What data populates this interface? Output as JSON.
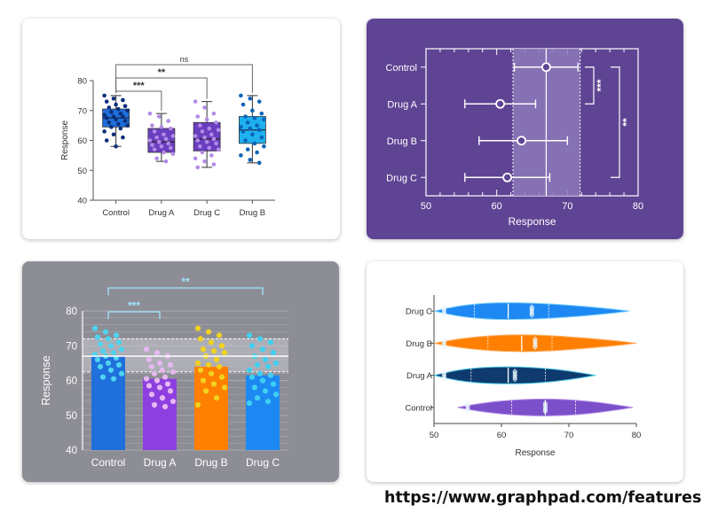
{
  "source_url": "https://www.graphpad.com/features",
  "colors": {
    "control": "#1f6fdc",
    "drug_a": "#8e3fe0",
    "drug_b": "#ff7f00",
    "drug_c": "#1e88f2",
    "box_purple": "#6a3fbf",
    "box_cyan": "#1fb0f0",
    "panel2_bg": "#5f4494",
    "panel3_bg": "#8d8d95",
    "violet_navy": "#0f3a6e"
  },
  "chart_data": [
    {
      "type": "box",
      "title": "",
      "xlabel": "",
      "ylabel": "Response",
      "ylim": [
        40,
        80
      ],
      "yticks": [
        40,
        50,
        60,
        70,
        80
      ],
      "categories": [
        "Control",
        "Drug A",
        "Drug C",
        "Drug B"
      ],
      "boxes": [
        {
          "name": "Control",
          "min": 58,
          "q1": 64.5,
          "median": 67.5,
          "q3": 70.5,
          "max": 75
        },
        {
          "name": "Drug A",
          "min": 53,
          "q1": 56,
          "median": 59.5,
          "q3": 64,
          "max": 69
        },
        {
          "name": "Drug C",
          "min": 51,
          "q1": 56.5,
          "median": 60.5,
          "q3": 66,
          "max": 73
        },
        {
          "name": "Drug B",
          "min": 52.5,
          "q1": 59,
          "median": 63.5,
          "q3": 68,
          "max": 75
        }
      ],
      "points": {
        "Control": [
          75,
          74,
          73.5,
          73,
          72,
          71.5,
          71,
          70.5,
          70,
          69.5,
          69,
          68.5,
          68,
          68,
          67.5,
          67,
          66.5,
          66,
          65.5,
          65,
          64.5,
          64,
          63,
          62,
          61,
          60,
          58
        ],
        "Drug A": [
          69,
          68,
          66.5,
          65,
          64.5,
          64,
          63,
          62,
          61.5,
          61,
          60.5,
          60,
          59.5,
          59,
          58.5,
          58,
          57.5,
          57,
          56,
          55.5,
          54,
          53
        ],
        "Drug C": [
          73,
          71,
          69,
          68,
          67,
          66,
          65,
          64,
          63.5,
          63,
          62,
          61.5,
          61,
          60.5,
          60,
          59.5,
          59,
          58,
          57.5,
          57,
          56,
          55,
          54,
          53,
          52,
          51
        ],
        "Drug B": [
          75,
          74,
          73,
          72,
          70,
          69,
          68,
          67.5,
          67,
          66,
          65,
          64.5,
          64,
          63.5,
          63,
          62,
          61,
          60,
          59,
          58,
          57,
          56,
          55,
          53.5,
          52.5
        ]
      },
      "significance": [
        {
          "from": "Control",
          "to": "Drug A",
          "label": "***"
        },
        {
          "from": "Control",
          "to": "Drug C",
          "label": "**"
        },
        {
          "from": "Control",
          "to": "Drug B",
          "label": "ns"
        }
      ]
    },
    {
      "type": "scatter",
      "title": "",
      "xlabel": "Response",
      "ylabel": "",
      "xlim": [
        50,
        80
      ],
      "xticks": [
        50,
        60,
        70,
        80
      ],
      "categories": [
        "Control",
        "Drug A",
        "Drug B",
        "Drug C"
      ],
      "means": [
        67,
        60.5,
        63.5,
        61.5
      ],
      "error_low": [
        62.5,
        55.5,
        57.5,
        55.5
      ],
      "error_high": [
        71.5,
        65.5,
        70,
        67.5
      ],
      "reference_band": {
        "low": 62.3,
        "high": 71.8,
        "center": 67
      },
      "significance": [
        {
          "from": "Control",
          "to": "Drug A",
          "label": "***"
        },
        {
          "from": "Control",
          "to": "Drug C",
          "label": "**"
        }
      ]
    },
    {
      "type": "bar",
      "title": "",
      "xlabel": "",
      "ylabel": "Response",
      "ylim": [
        40,
        80
      ],
      "yticks": [
        40,
        50,
        60,
        70,
        80
      ],
      "categories": [
        "Control",
        "Drug A",
        "Drug B",
        "Drug C"
      ],
      "values": [
        67,
        60.5,
        64,
        61.5
      ],
      "reference_band": {
        "low": 62.5,
        "high": 72,
        "center": 67
      },
      "points": {
        "Control": [
          75,
          74,
          73,
          72.5,
          72,
          71,
          70.5,
          70,
          69,
          68.5,
          68,
          67.5,
          67,
          66.5,
          66,
          65,
          64.5,
          64,
          63,
          62,
          61,
          60.5
        ],
        "Drug A": [
          69,
          68,
          67,
          66,
          65,
          64.5,
          64,
          63,
          62.5,
          62,
          61,
          60.5,
          60,
          59,
          58.5,
          58,
          57,
          56,
          55,
          54,
          53,
          52.5
        ],
        "Drug B": [
          75,
          74,
          73,
          72,
          71,
          70,
          69,
          68.5,
          68,
          67,
          66,
          65,
          64.5,
          64,
          63,
          62,
          61,
          60,
          59,
          58,
          57,
          55,
          53
        ],
        "Drug C": [
          73,
          72,
          71,
          70,
          69,
          68,
          67,
          66,
          65,
          64.5,
          64,
          63,
          62,
          61.5,
          61,
          60,
          59,
          58,
          57,
          56,
          55,
          54,
          53.5
        ]
      },
      "significance": [
        {
          "from": "Control",
          "to": "Drug A",
          "label": "***"
        },
        {
          "from": "Control",
          "to": "Drug C",
          "label": "**"
        }
      ]
    },
    {
      "type": "violin",
      "title": "",
      "xlabel": "Response",
      "ylabel": "",
      "xlim": [
        50,
        80
      ],
      "xticks": [
        50,
        60,
        70,
        80
      ],
      "categories": [
        "Drug C",
        "Drug B",
        "Drug A",
        "Control"
      ],
      "ranges": [
        [
          50,
          79
        ],
        [
          50,
          80
        ],
        [
          50,
          74
        ],
        [
          53.5,
          79.5
        ]
      ],
      "medians": [
        61,
        63,
        61,
        66.5
      ],
      "quartiles": [
        [
          56,
          67
        ],
        [
          58,
          67.5
        ],
        [
          55.5,
          66.5
        ],
        [
          61.5,
          71
        ]
      ]
    }
  ]
}
